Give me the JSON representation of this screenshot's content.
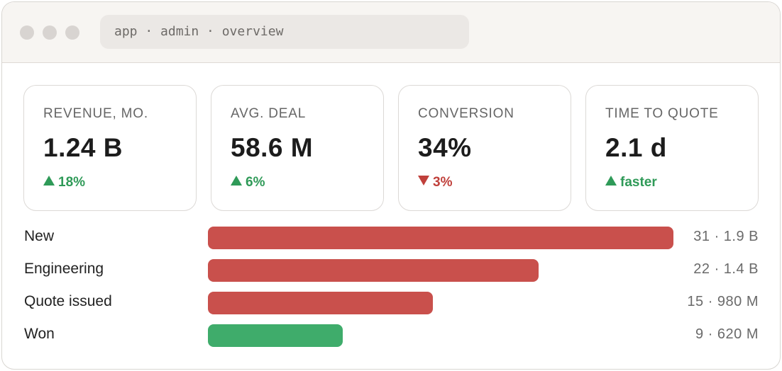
{
  "address_bar": {
    "text": "app · admin · overview"
  },
  "kpis": [
    {
      "label": "REVENUE, MO.",
      "value": "1.24 B",
      "delta": "18%",
      "direction": "up"
    },
    {
      "label": "AVG. DEAL",
      "value": "58.6 M",
      "delta": "6%",
      "direction": "up"
    },
    {
      "label": "CONVERSION",
      "value": "34%",
      "delta": "3%",
      "direction": "down"
    },
    {
      "label": "TIME TO QUOTE",
      "value": "2.1 d",
      "delta": "faster",
      "direction": "up"
    }
  ],
  "funnel": {
    "colors": {
      "open": "#c9504c",
      "won": "#3fac6b"
    },
    "stages": [
      {
        "label": "New",
        "count": 31,
        "amount": "1.9 B",
        "display": "31 · 1.9 B",
        "status": "open"
      },
      {
        "label": "Engineering",
        "count": 22,
        "amount": "1.4 B",
        "display": "22 · 1.4 B",
        "status": "open"
      },
      {
        "label": "Quote issued",
        "count": 15,
        "amount": "980 M",
        "display": "15 · 980 M",
        "status": "open"
      },
      {
        "label": "Won",
        "count": 9,
        "amount": "620 M",
        "display": "9 · 620 M",
        "status": "won"
      }
    ]
  }
}
